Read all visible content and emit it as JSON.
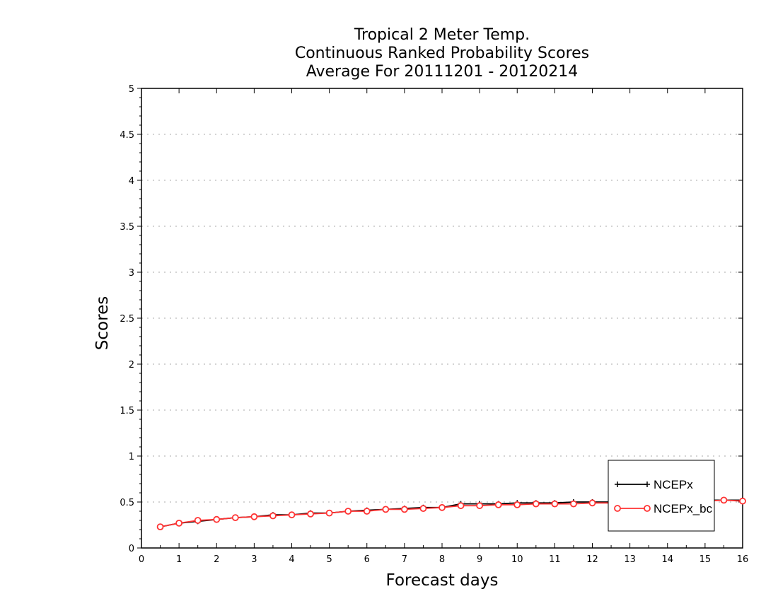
{
  "chart_data": {
    "type": "line",
    "title": [
      "Tropical 2 Meter Temp.",
      "Continuous Ranked Probability Scores",
      "Average For 20111201 - 20120214"
    ],
    "xlabel": "Forecast days",
    "ylabel": "Scores",
    "xlim": [
      0,
      16
    ],
    "ylim": [
      0,
      5
    ],
    "x_ticks": [
      "0",
      "1",
      "2",
      "3",
      "4",
      "5",
      "6",
      "7",
      "8",
      "9",
      "10",
      "11",
      "12",
      "13",
      "14",
      "15",
      "16"
    ],
    "y_ticks": [
      "0",
      "0.5",
      "1",
      "1.5",
      "2",
      "2.5",
      "3",
      "3.5",
      "4",
      "4.5",
      "5"
    ],
    "grid": "horizontal dotted",
    "legend_position": "bottom-right",
    "x": [
      0.5,
      1,
      1.5,
      2,
      2.5,
      3,
      3.5,
      4,
      4.5,
      5,
      5.5,
      6,
      6.5,
      7,
      7.5,
      8,
      8.5,
      9,
      9.5,
      10,
      10.5,
      11,
      11.5,
      12,
      12.5,
      13,
      13.5,
      14,
      14.5,
      15,
      15.5,
      16
    ],
    "series": [
      {
        "name": "NCEPx",
        "color": "#000000",
        "marker": "plus",
        "values": [
          0.23,
          0.27,
          0.29,
          0.31,
          0.33,
          0.34,
          0.36,
          0.36,
          0.38,
          0.38,
          0.4,
          0.41,
          0.42,
          0.43,
          0.44,
          0.44,
          0.48,
          0.48,
          0.48,
          0.49,
          0.49,
          0.49,
          0.5,
          0.5,
          0.5,
          0.5,
          0.51,
          0.51,
          0.51,
          0.52,
          0.52,
          0.52
        ]
      },
      {
        "name": "NCEPx_bc",
        "color": "#ff3333",
        "marker": "circle",
        "values": [
          0.23,
          0.27,
          0.3,
          0.31,
          0.33,
          0.34,
          0.35,
          0.36,
          0.37,
          0.38,
          0.4,
          0.4,
          0.42,
          0.42,
          0.43,
          0.44,
          0.46,
          0.46,
          0.47,
          0.47,
          0.48,
          0.48,
          0.48,
          0.49,
          0.49,
          0.49,
          0.5,
          0.5,
          0.51,
          0.51,
          0.52,
          0.51
        ]
      }
    ]
  }
}
